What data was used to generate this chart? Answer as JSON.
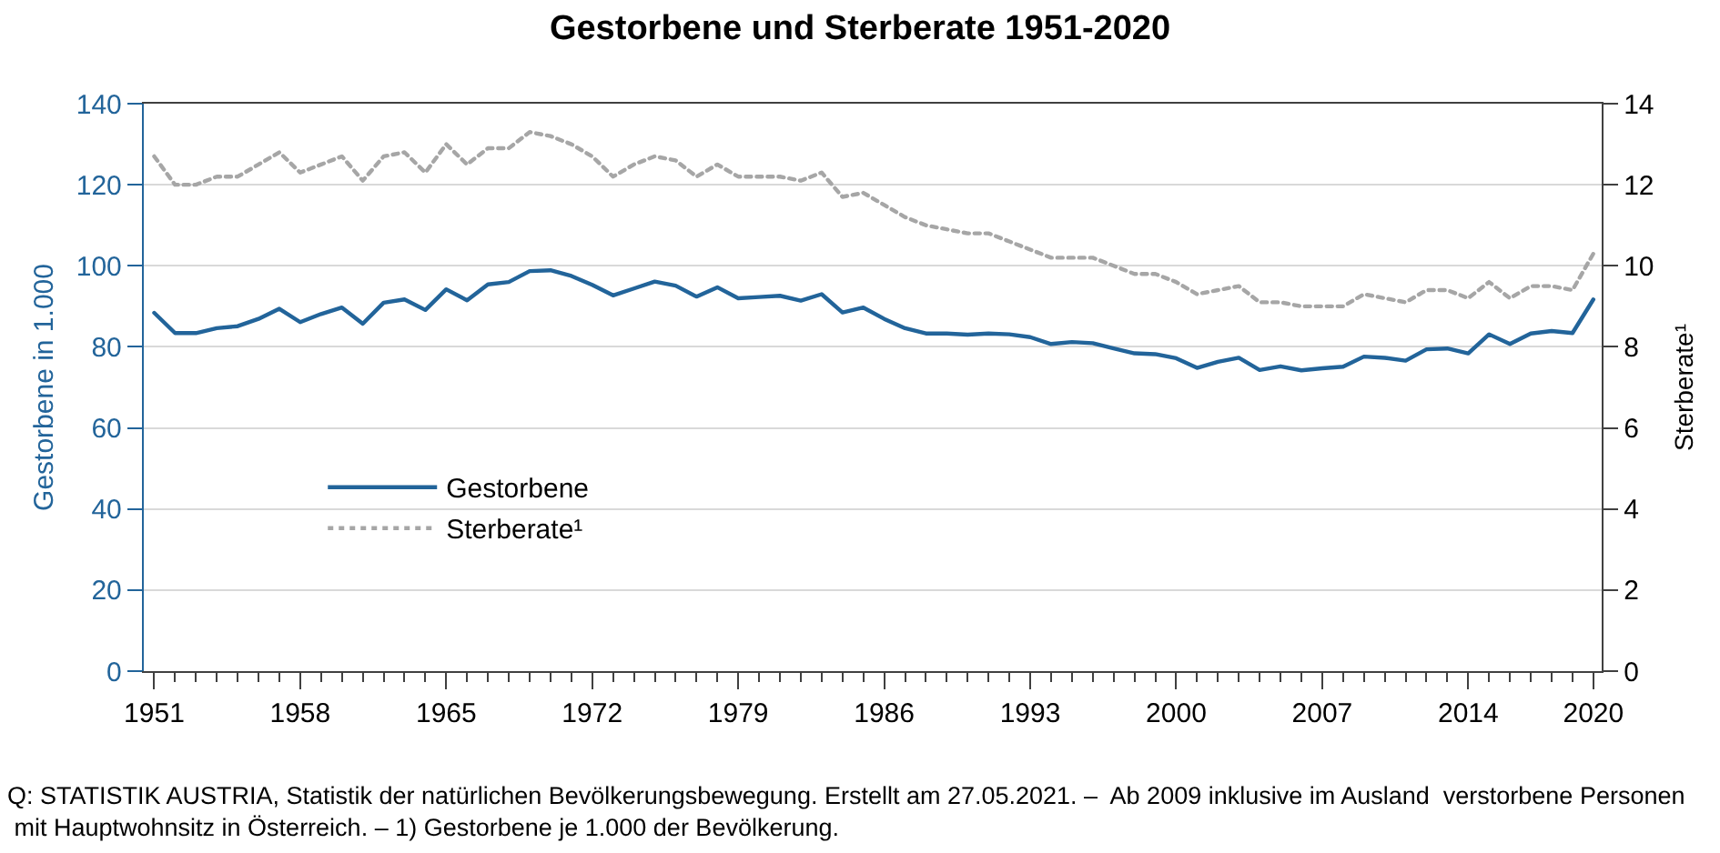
{
  "chart_data": {
    "type": "line",
    "title": "Gestorbene und Sterberate 1951-2020",
    "ylabel": "Gestorbene in 1.000",
    "y2label": "Sterberate¹",
    "x": [
      1951,
      1952,
      1953,
      1954,
      1955,
      1956,
      1957,
      1958,
      1959,
      1960,
      1961,
      1962,
      1963,
      1964,
      1965,
      1966,
      1967,
      1968,
      1969,
      1970,
      1971,
      1972,
      1973,
      1974,
      1975,
      1976,
      1977,
      1978,
      1979,
      1980,
      1981,
      1982,
      1983,
      1984,
      1985,
      1986,
      1987,
      1988,
      1989,
      1990,
      1991,
      1992,
      1993,
      1994,
      1995,
      1996,
      1997,
      1998,
      1999,
      2000,
      2001,
      2002,
      2003,
      2004,
      2005,
      2006,
      2007,
      2008,
      2009,
      2010,
      2011,
      2012,
      2013,
      2014,
      2015,
      2016,
      2017,
      2018,
      2019,
      2020
    ],
    "series": [
      {
        "name": "Gestorbene",
        "color": "#22649a",
        "line_style": "solid",
        "axis": "y",
        "values": [
          88.4,
          83.4,
          83.4,
          84.6,
          85.1,
          86.9,
          89.4,
          86.1,
          88.1,
          89.7,
          85.7,
          90.9,
          91.7,
          89.1,
          94.2,
          91.5,
          95.4,
          96.0,
          98.7,
          98.9,
          97.5,
          95.3,
          92.7,
          94.4,
          96.1,
          95.1,
          92.4,
          94.7,
          92.0,
          92.3,
          92.6,
          91.4,
          93.0,
          88.5,
          89.7,
          86.9,
          84.6,
          83.3,
          83.3,
          83.0,
          83.3,
          83.1,
          82.4,
          80.7,
          81.2,
          80.9,
          79.6,
          78.4,
          78.2,
          77.2,
          74.8,
          76.3,
          77.3,
          74.3,
          75.2,
          74.2,
          74.7,
          75.1,
          77.6,
          77.3,
          76.6,
          79.4,
          79.6,
          78.4,
          83.1,
          80.7,
          83.3,
          83.9,
          83.4,
          91.7
        ]
      },
      {
        "name": "Sterberate¹",
        "color": "#a6a6a6",
        "line_style": "dotted",
        "axis": "y2",
        "values": [
          12.7,
          12.0,
          12.0,
          12.2,
          12.2,
          12.5,
          12.8,
          12.3,
          12.5,
          12.7,
          12.1,
          12.7,
          12.8,
          12.3,
          13.0,
          12.5,
          12.9,
          12.9,
          13.3,
          13.2,
          13.0,
          12.7,
          12.2,
          12.5,
          12.7,
          12.6,
          12.2,
          12.5,
          12.2,
          12.2,
          12.2,
          12.1,
          12.3,
          11.7,
          11.8,
          11.5,
          11.2,
          11.0,
          10.9,
          10.8,
          10.8,
          10.6,
          10.4,
          10.2,
          10.2,
          10.2,
          10.0,
          9.8,
          9.8,
          9.6,
          9.3,
          9.4,
          9.5,
          9.1,
          9.1,
          9.0,
          9.0,
          9.0,
          9.3,
          9.2,
          9.1,
          9.4,
          9.4,
          9.2,
          9.6,
          9.2,
          9.5,
          9.5,
          9.4,
          10.3
        ]
      }
    ],
    "xlim": [
      1950.5,
      2020.4
    ],
    "xticks": [
      1951,
      {
        "value": 1952,
        "label": null
      },
      {
        "value": 1953,
        "label": null
      },
      {
        "value": 1954,
        "label": null
      },
      {
        "value": 1955,
        "label": null
      },
      {
        "value": 1956,
        "label": null
      },
      {
        "value": 1957,
        "label": null
      },
      1958,
      {
        "value": 1959,
        "label": null
      },
      {
        "value": 1960,
        "label": null
      },
      {
        "value": 1961,
        "label": null
      },
      {
        "value": 1962,
        "label": null
      },
      {
        "value": 1963,
        "label": null
      },
      {
        "value": 1964,
        "label": null
      },
      1965,
      {
        "value": 1966,
        "label": null
      },
      {
        "value": 1967,
        "label": null
      },
      {
        "value": 1968,
        "label": null
      },
      {
        "value": 1969,
        "label": null
      },
      {
        "value": 1970,
        "label": null
      },
      {
        "value": 1971,
        "label": null
      },
      1972,
      {
        "value": 1973,
        "label": null
      },
      {
        "value": 1974,
        "label": null
      },
      {
        "value": 1975,
        "label": null
      },
      {
        "value": 1976,
        "label": null
      },
      {
        "value": 1977,
        "label": null
      },
      {
        "value": 1978,
        "label": null
      },
      1979,
      {
        "value": 1980,
        "label": null
      },
      {
        "value": 1981,
        "label": null
      },
      {
        "value": 1982,
        "label": null
      },
      {
        "value": 1983,
        "label": null
      },
      {
        "value": 1984,
        "label": null
      },
      {
        "value": 1985,
        "label": null
      },
      1986,
      {
        "value": 1987,
        "label": null
      },
      {
        "value": 1988,
        "label": null
      },
      {
        "value": 1989,
        "label": null
      },
      {
        "value": 1990,
        "label": null
      },
      {
        "value": 1991,
        "label": null
      },
      {
        "value": 1992,
        "label": null
      },
      1993,
      {
        "value": 1994,
        "label": null
      },
      {
        "value": 1995,
        "label": null
      },
      {
        "value": 1996,
        "label": null
      },
      {
        "value": 1997,
        "label": null
      },
      {
        "value": 1998,
        "label": null
      },
      {
        "value": 1999,
        "label": null
      },
      2000,
      {
        "value": 2001,
        "label": null
      },
      {
        "value": 2002,
        "label": null
      },
      {
        "value": 2003,
        "label": null
      },
      {
        "value": 2004,
        "label": null
      },
      {
        "value": 2005,
        "label": null
      },
      {
        "value": 2006,
        "label": null
      },
      2007,
      {
        "value": 2008,
        "label": null
      },
      {
        "value": 2009,
        "label": null
      },
      {
        "value": 2010,
        "label": null
      },
      {
        "value": 2011,
        "label": null
      },
      {
        "value": 2012,
        "label": null
      },
      {
        "value": 2013,
        "label": null
      },
      2014,
      {
        "value": 2015,
        "label": null
      },
      {
        "value": 2016,
        "label": null
      },
      {
        "value": 2017,
        "label": null
      },
      {
        "value": 2018,
        "label": null
      },
      {
        "value": 2019,
        "label": null
      },
      2020
    ],
    "ylim": [
      0,
      140
    ],
    "yticks": [
      0,
      20,
      40,
      60,
      80,
      100,
      120,
      140
    ],
    "y2lim": [
      0,
      14
    ],
    "y2ticks": [
      0,
      2,
      4,
      6,
      8,
      10,
      12,
      14
    ],
    "grid": "y",
    "legend": "bottom left",
    "annotations": [
      "Q: STATISTIK AUSTRIA, Statistik der natürlichen Bevölkerungsbewegung. Erstellt am 27.05.2021. –  Ab 2009 inklusive im Ausland  verstorbene Personen\n mit Hauptwohnsitz in Österreich. – 1) Gestorbene je 1.000 der Bevölkerung."
    ]
  }
}
